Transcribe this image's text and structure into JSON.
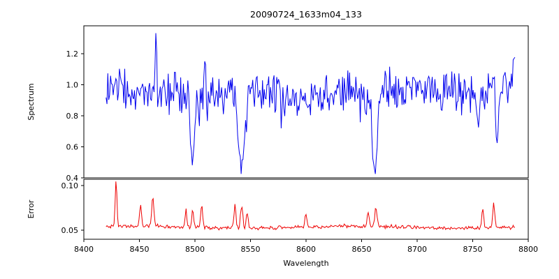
{
  "chart_data": [
    {
      "type": "line",
      "name": "spectrum-panel",
      "title": "20090724_1633m04_133",
      "ylabel": "Spectrum",
      "color": "#0000ee",
      "xlim": [
        8400,
        8800
      ],
      "ylim": [
        0.4,
        1.38
      ],
      "yticks": [
        "1.2",
        "1.0",
        "0.8",
        "0.6",
        "0.4"
      ],
      "ytick_values": [
        1.2,
        1.0,
        0.8,
        0.6,
        0.4
      ],
      "x_start": 8420,
      "x_end": 8788,
      "x_step": 0.8,
      "continuum": 0.95,
      "noise_amplitude": 0.16,
      "seed": 20090724,
      "absorption_lines": [
        {
          "center": 8498,
          "min": 0.5,
          "sigma": 1.6
        },
        {
          "center": 8542,
          "min": 0.445,
          "sigma": 2.8
        },
        {
          "center": 8662,
          "min": 0.43,
          "sigma": 2.2
        },
        {
          "center": 8755,
          "min": 0.66,
          "sigma": 1.2
        },
        {
          "center": 8772,
          "min": 0.64,
          "sigma": 1.2
        }
      ],
      "emission_spikes": [
        {
          "center": 8465,
          "peak": 1.33,
          "sigma": 0.6
        },
        {
          "center": 8509,
          "peak": 1.21,
          "sigma": 0.6
        },
        {
          "center": 8788,
          "peak": 1.18,
          "sigma": 0.9
        }
      ],
      "grid": false,
      "legend": "none"
    },
    {
      "type": "line",
      "name": "error-panel",
      "ylabel": "Error",
      "xlabel": "Wavelength",
      "color": "#ee0000",
      "xlim": [
        8400,
        8800
      ],
      "ylim": [
        0.04,
        0.107
      ],
      "yticks": [
        "0.10",
        "0.05"
      ],
      "ytick_values": [
        0.1,
        0.05
      ],
      "xticks": [
        "8400",
        "8450",
        "8500",
        "8550",
        "8600",
        "8650",
        "8700",
        "8750",
        "8800"
      ],
      "xtick_values": [
        8400,
        8450,
        8500,
        8550,
        8600,
        8650,
        8700,
        8750,
        8800
      ],
      "baseline": 0.0535,
      "noise_amplitude": 0.0025,
      "seed": 1633,
      "spikes": [
        {
          "center": 8429,
          "peak": 0.103,
          "sigma": 0.8
        },
        {
          "center": 8451,
          "peak": 0.082,
          "sigma": 0.8
        },
        {
          "center": 8462,
          "peak": 0.088,
          "sigma": 0.9
        },
        {
          "center": 8492,
          "peak": 0.072,
          "sigma": 0.8
        },
        {
          "center": 8498,
          "peak": 0.075,
          "sigma": 0.8
        },
        {
          "center": 8506,
          "peak": 0.078,
          "sigma": 0.9
        },
        {
          "center": 8536,
          "peak": 0.079,
          "sigma": 0.9
        },
        {
          "center": 8542,
          "peak": 0.081,
          "sigma": 1.0
        },
        {
          "center": 8547,
          "peak": 0.074,
          "sigma": 0.8
        },
        {
          "center": 8600,
          "peak": 0.07,
          "sigma": 0.8
        },
        {
          "center": 8656,
          "peak": 0.07,
          "sigma": 0.9
        },
        {
          "center": 8663,
          "peak": 0.073,
          "sigma": 1.0
        },
        {
          "center": 8759,
          "peak": 0.075,
          "sigma": 0.9
        },
        {
          "center": 8769,
          "peak": 0.078,
          "sigma": 0.9
        }
      ],
      "grid": false,
      "legend": "none"
    }
  ]
}
